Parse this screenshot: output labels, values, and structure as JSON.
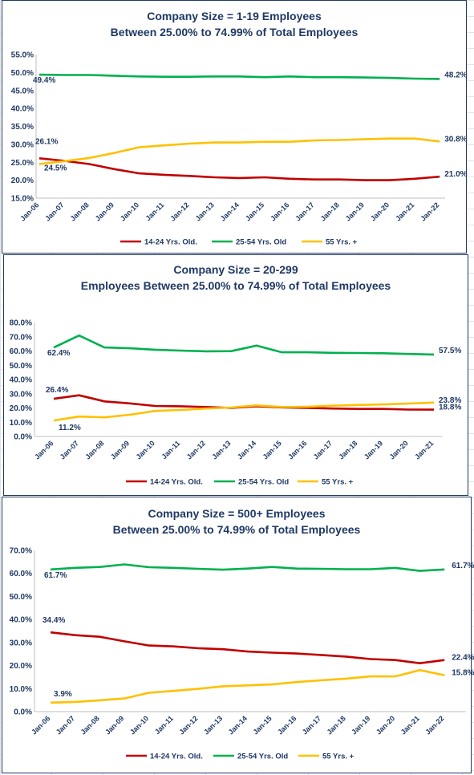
{
  "colors": {
    "series_1": "#c00000",
    "series_2": "#00b050",
    "series_3": "#ffc000",
    "text": "#1f3864"
  },
  "chart_data": [
    {
      "type": "line",
      "title": "Company Size = 1-19 Employees",
      "subtitle": "Between 25.00% to 74.99% of Total Employees",
      "x": [
        "Jan-06",
        "Jan-07",
        "Jan-08",
        "Jan-09",
        "Jan-10",
        "Jan-11",
        "Jan-12",
        "Jan-13",
        "Jan-14",
        "Jan-15",
        "Jan-16",
        "Jan-17",
        "Jan-18",
        "Jan-19",
        "Jan-20",
        "Jan-21",
        "Jan-22"
      ],
      "ylim": [
        15,
        55
      ],
      "y_ticks": [
        "15.0%",
        "20.0%",
        "25.0%",
        "30.0%",
        "35.0%",
        "40.0%",
        "45.0%",
        "50.0%",
        "55.0%"
      ],
      "legend_position": "bottom",
      "grid": false,
      "series": [
        {
          "name": "14-24 Yrs. Old.",
          "color": "#c00000",
          "values": [
            26.1,
            25.4,
            24.5,
            23.1,
            21.9,
            21.5,
            21.2,
            20.8,
            20.6,
            20.8,
            20.4,
            20.2,
            20.2,
            20.0,
            20.0,
            20.4,
            21.0
          ],
          "labels": [
            "26.1%",
            "",
            "",
            "",
            "",
            "",
            "",
            "",
            "",
            "",
            "",
            "",
            "",
            "",
            "",
            "",
            "21.0%"
          ]
        },
        {
          "name": "25-54 Yrs. Old",
          "color": "#00b050",
          "values": [
            49.4,
            49.3,
            49.3,
            49.1,
            48.9,
            48.8,
            48.8,
            48.9,
            48.9,
            48.7,
            48.9,
            48.7,
            48.7,
            48.6,
            48.5,
            48.3,
            48.2
          ],
          "labels": [
            "49.4%",
            "",
            "",
            "",
            "",
            "",
            "",
            "",
            "",
            "",
            "",
            "",
            "",
            "",
            "",
            "",
            "48.2%"
          ]
        },
        {
          "name": "55 Yrs. +",
          "color": "#ffc000",
          "values": [
            24.5,
            25.3,
            26.2,
            27.6,
            29.2,
            29.7,
            30.2,
            30.5,
            30.5,
            30.7,
            30.7,
            31.1,
            31.2,
            31.4,
            31.6,
            31.6,
            30.8
          ],
          "labels": [
            "24.5%",
            "",
            "",
            "",
            "",
            "",
            "",
            "",
            "",
            "",
            "",
            "",
            "",
            "",
            "",
            "",
            "30.8%"
          ]
        }
      ]
    },
    {
      "type": "line",
      "title": "Company Size = 20-299",
      "subtitle": "Employees Between 25.00% to 74.99% of Total Employees",
      "x": [
        "Jan-06",
        "Jan-07",
        "Jan-08",
        "Jan-09",
        "Jan-10",
        "Jan-11",
        "Jan-12",
        "Jan-13",
        "Jan-14",
        "Jan-15",
        "Jan-16",
        "Jan-17",
        "Jan-18",
        "Jan-19",
        "Jan-20",
        "Jan-21"
      ],
      "ylim": [
        0,
        80
      ],
      "y_ticks": [
        "0.0%",
        "10.0%",
        "20.0%",
        "30.0%",
        "40.0%",
        "50.0%",
        "60.0%",
        "70.0%",
        "80.0%"
      ],
      "legend_position": "bottom",
      "grid": false,
      "series": [
        {
          "name": "14-24 Yrs. Old.",
          "color": "#c00000",
          "values": [
            26.4,
            28.9,
            24.6,
            23.2,
            21.4,
            21.2,
            20.7,
            20.0,
            21.2,
            20.4,
            20.0,
            19.6,
            19.3,
            19.3,
            18.9,
            18.8
          ],
          "labels": [
            "26.4%",
            "",
            "",
            "",
            "",
            "",
            "",
            "",
            "",
            "",
            "",
            "",
            "",
            "",
            "",
            "18.8%"
          ]
        },
        {
          "name": "25-54 Yrs. Old",
          "color": "#00b050",
          "values": [
            62.4,
            70.9,
            62.5,
            61.9,
            60.9,
            60.3,
            59.8,
            59.9,
            63.8,
            59.1,
            59.1,
            58.7,
            58.6,
            58.4,
            57.9,
            57.5
          ],
          "labels": [
            "62.4%",
            "",
            "",
            "",
            "",
            "",
            "",
            "",
            "",
            "",
            "",
            "",
            "",
            "",
            "",
            "57.5%"
          ]
        },
        {
          "name": "55 Yrs. +",
          "color": "#ffc000",
          "values": [
            11.2,
            14.0,
            13.4,
            15.2,
            17.9,
            18.6,
            19.6,
            20.3,
            21.8,
            20.7,
            20.8,
            21.6,
            22.1,
            22.5,
            23.1,
            23.8
          ],
          "labels": [
            "11.2%",
            "",
            "",
            "",
            "",
            "",
            "",
            "",
            "",
            "",
            "",
            "",
            "",
            "",
            "",
            "23.8%"
          ]
        }
      ]
    },
    {
      "type": "line",
      "title": "Company Size = 500+ Employees",
      "subtitle": "Between 25.00% to 74.99% of Total Employees",
      "x": [
        "Jan-06",
        "Jan-07",
        "Jan-08",
        "Jan-09",
        "Jan-10",
        "Jan-11",
        "Jan-12",
        "Jan-13",
        "Jan-14",
        "Jan-15",
        "Jan-16",
        "Jan-17",
        "Jan-18",
        "Jan-19",
        "Jan-20",
        "Jan-21",
        "Jan-22"
      ],
      "ylim": [
        0,
        70
      ],
      "y_ticks": [
        "0.0%",
        "10.0%",
        "20.0%",
        "30.0%",
        "40.0%",
        "50.0%",
        "60.0%",
        "70.0%"
      ],
      "legend_position": "bottom",
      "grid": false,
      "series": [
        {
          "name": "14-24 Yrs. Old.",
          "color": "#c00000",
          "values": [
            34.4,
            33.2,
            32.5,
            30.5,
            28.7,
            28.3,
            27.5,
            27.1,
            26.1,
            25.6,
            25.2,
            24.6,
            23.9,
            22.8,
            22.4,
            21.0,
            22.4
          ],
          "labels": [
            "34.4%",
            "",
            "",
            "",
            "",
            "",
            "",
            "",
            "",
            "",
            "",
            "",
            "",
            "",
            "",
            "",
            "22.4%"
          ]
        },
        {
          "name": "25-54 Yrs. Old",
          "color": "#00b050",
          "values": [
            61.7,
            62.4,
            62.8,
            63.9,
            62.7,
            62.4,
            62.0,
            61.6,
            62.1,
            62.8,
            62.1,
            62.0,
            61.8,
            61.8,
            62.4,
            61.1,
            61.7
          ],
          "labels": [
            "61.7%",
            "",
            "",
            "",
            "",
            "",
            "",
            "",
            "",
            "",
            "",
            "",
            "",
            "",
            "",
            "",
            "61.7%"
          ]
        },
        {
          "name": "55 Yrs. +",
          "color": "#ffc000",
          "values": [
            3.9,
            4.2,
            4.9,
            5.7,
            8.2,
            9.0,
            9.9,
            11.0,
            11.4,
            11.8,
            12.8,
            13.6,
            14.3,
            15.3,
            15.3,
            18.0,
            15.8
          ],
          "labels": [
            "3.9%",
            "",
            "",
            "",
            "",
            "",
            "",
            "",
            "",
            "",
            "",
            "",
            "",
            "",
            "",
            "",
            "15.8%"
          ]
        }
      ]
    }
  ]
}
